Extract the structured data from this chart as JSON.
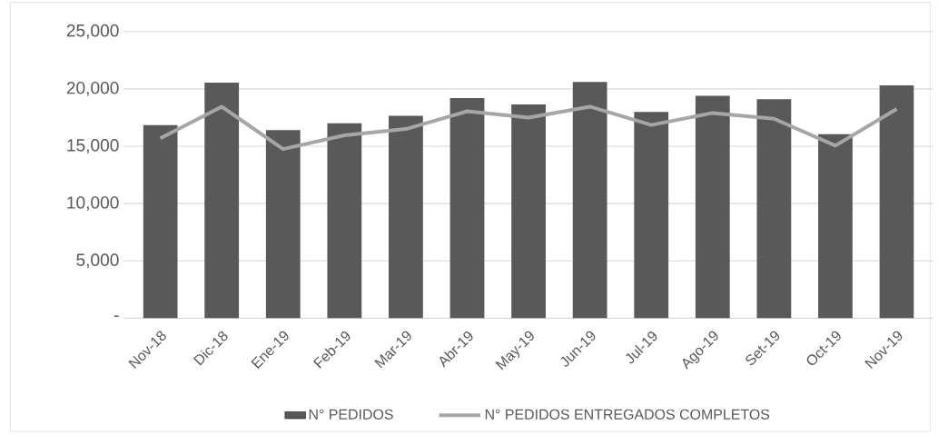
{
  "chart_data": {
    "type": "bar",
    "categories": [
      "Nov-18",
      "Dic-18",
      "Ene-19",
      "Feb-19",
      "Mar-19",
      "Abr-19",
      "May-19",
      "Jun-19",
      "Jul-19",
      "Ago-19",
      "Set-19",
      "Oct-19",
      "Nov-19"
    ],
    "series": [
      {
        "name": "N° PEDIDOS",
        "color": "#595959",
        "values": [
          16850,
          20550,
          16400,
          17000,
          17650,
          19200,
          18650,
          20600,
          18000,
          19400,
          19100,
          16050,
          20300
        ]
      },
      {
        "name": "N° PEDIDOS ENTREGADOS COMPLETOS",
        "type": "line",
        "color": "#a6a6a6",
        "values": [
          15700,
          18450,
          14750,
          15950,
          16500,
          18050,
          17500,
          18450,
          16850,
          17900,
          17400,
          15050,
          18250
        ]
      }
    ],
    "ylim": [
      0,
      25000
    ],
    "yticks": [
      {
        "value": 0,
        "label": "-"
      },
      {
        "value": 5000,
        "label": "5,000"
      },
      {
        "value": 10000,
        "label": "10,000"
      },
      {
        "value": 15000,
        "label": "15,000"
      },
      {
        "value": 20000,
        "label": "20,000"
      },
      {
        "value": 25000,
        "label": "25,000"
      }
    ],
    "grid": "y",
    "legend": "bottom",
    "marker": "none"
  }
}
